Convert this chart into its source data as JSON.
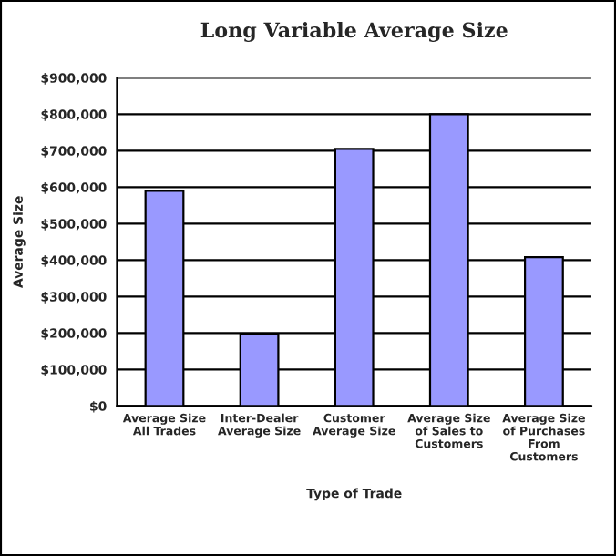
{
  "chart_data": {
    "type": "bar",
    "title": "Long Variable Average Size",
    "xlabel": "Type of Trade",
    "ylabel": "Average Size",
    "categories": [
      "Average Size\nAll Trades",
      "Inter-Dealer\nAverage Size",
      "Customer\nAverage Size",
      "Average Size\nof Sales to\nCustomers",
      "Average Size\nof Purchases\nFrom\nCustomers"
    ],
    "values": [
      590000,
      198000,
      705000,
      800000,
      408000
    ],
    "color": "#9999ff",
    "ylim": [
      0,
      900000
    ],
    "yticks": [
      {
        "value": 0,
        "label": "$0"
      },
      {
        "value": 100000,
        "label": "$100,000"
      },
      {
        "value": 200000,
        "label": "$200,000"
      },
      {
        "value": 300000,
        "label": "$300,000"
      },
      {
        "value": 400000,
        "label": "$400,000"
      },
      {
        "value": 500000,
        "label": "$500,000"
      },
      {
        "value": 600000,
        "label": "$600,000"
      },
      {
        "value": 700000,
        "label": "$700,000"
      },
      {
        "value": 800000,
        "label": "$800,000"
      },
      {
        "value": 900000,
        "label": "$900,000"
      }
    ],
    "grid": "y",
    "legend": false
  }
}
